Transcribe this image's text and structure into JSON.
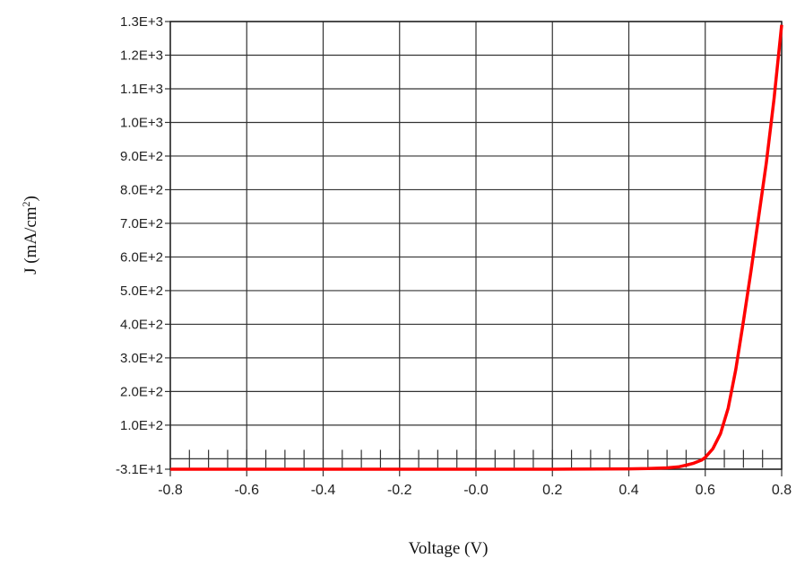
{
  "chart_data": {
    "type": "line",
    "title": "",
    "xlabel": "Voltage (V)",
    "ylabel_main": "J (mA/cm",
    "ylabel_sup": "2",
    "ylabel_close": ")",
    "xlim": [
      -0.8,
      0.8
    ],
    "ylim": [
      -31,
      1300
    ],
    "x_ticks": [
      -0.8,
      -0.6,
      -0.4,
      -0.2,
      0.0,
      0.2,
      0.4,
      0.6,
      0.8
    ],
    "x_tick_labels": [
      "-0.8",
      "-0.6",
      "-0.4",
      "-0.2",
      "-0.0",
      "0.2",
      "0.4",
      "0.6",
      "0.8"
    ],
    "y_ticks": [
      -31,
      100,
      200,
      300,
      400,
      500,
      600,
      700,
      800,
      900,
      1000,
      1100,
      1200,
      1300
    ],
    "y_tick_labels": [
      "-3.1E+1",
      "1.0E+2",
      "2.0E+2",
      "3.0E+2",
      "4.0E+2",
      "5.0E+2",
      "6.0E+2",
      "7.0E+2",
      "8.0E+2",
      "9.0E+2",
      "1.0E+3",
      "1.1E+3",
      "1.2E+3",
      "1.3E+3"
    ],
    "grid": true,
    "series": [
      {
        "color": "#ff0000",
        "x": [
          -0.8,
          -0.6,
          -0.4,
          -0.2,
          0.0,
          0.2,
          0.4,
          0.45,
          0.5,
          0.53,
          0.55,
          0.57,
          0.59,
          0.6,
          0.62,
          0.64,
          0.66,
          0.68,
          0.7,
          0.72,
          0.74,
          0.76,
          0.78,
          0.8
        ],
        "y": [
          -31,
          -31,
          -31,
          -31,
          -31,
          -31,
          -30,
          -29,
          -27,
          -24,
          -19,
          -13,
          -4,
          4,
          30,
          75,
          150,
          265,
          410,
          560,
          720,
          880,
          1070,
          1290
        ]
      }
    ]
  }
}
